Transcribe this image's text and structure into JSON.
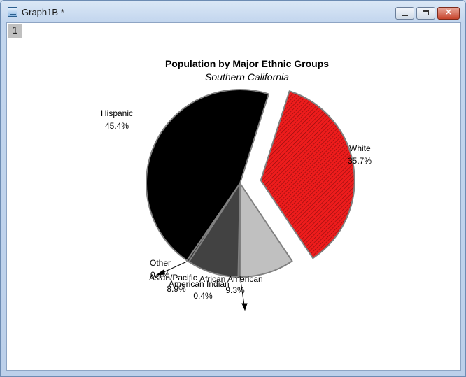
{
  "window": {
    "title": "Graph1B *",
    "layer_label": "1"
  },
  "colors": {
    "white": "#ee1c1c",
    "hispanic": "#000000",
    "asian": "#424242",
    "american_indian": "#6b6b6b",
    "african_american": "#c0c0c0",
    "other": "#2a2a2a",
    "outline": "#808080"
  },
  "chart_data": {
    "type": "pie",
    "title": "Population by Major Ethnic Groups",
    "subtitle": "Southern California",
    "slices": [
      {
        "label": "White",
        "percent_label": "35.7%",
        "value": 35.7,
        "exploded": true,
        "hatched": true
      },
      {
        "label": "African American",
        "percent_label": "9.3%",
        "value": 9.3
      },
      {
        "label": "American Indian",
        "percent_label": "0.4%",
        "value": 0.4
      },
      {
        "label": "Asian/Pacific",
        "percent_label": "8.9%",
        "value": 8.9
      },
      {
        "label": "Other",
        "percent_label": "0.4%",
        "value": 0.4
      },
      {
        "label": "Hispanic",
        "percent_label": "45.4%",
        "value": 45.4
      }
    ]
  }
}
